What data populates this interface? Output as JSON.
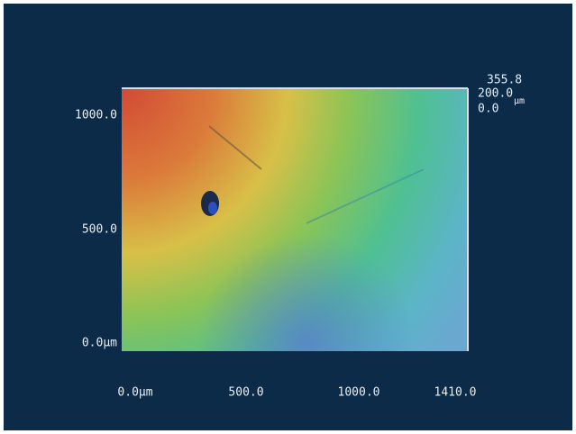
{
  "y_axis": {
    "labels": [
      "1000.0",
      "500.0",
      "0.0μm"
    ]
  },
  "x_axis": {
    "labels": [
      "0.0μm",
      "500.0",
      "1000.0",
      "1410.0"
    ]
  },
  "height_scale": {
    "max": "355.8",
    "mid": "200.0",
    "unit": "μm",
    "min": "0.0"
  }
}
